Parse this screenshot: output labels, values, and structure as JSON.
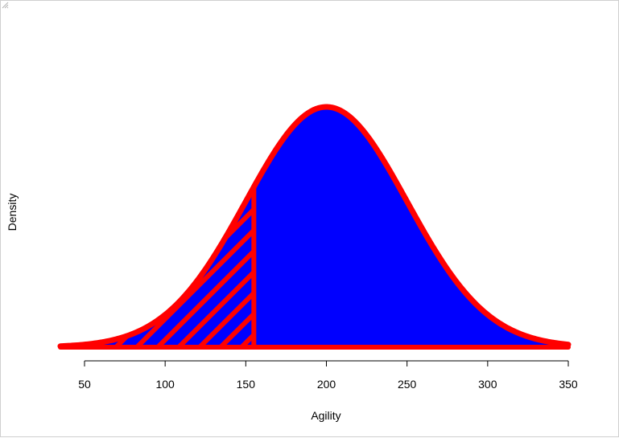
{
  "chart_data": {
    "type": "area",
    "title": "",
    "xlabel": "Agility",
    "ylabel": "Density",
    "distribution": {
      "name": "normal",
      "mean": 200,
      "sd": 50
    },
    "x_range": [
      35,
      350
    ],
    "xlim": [
      35,
      350
    ],
    "x_ticks": [
      50,
      100,
      150,
      200,
      250,
      300,
      350
    ],
    "x_tick_labels": [
      "50",
      "100",
      "150",
      "200",
      "250",
      "300",
      "350"
    ],
    "shaded_region": {
      "from": 35,
      "to": 155,
      "fill": "hatched"
    },
    "colors": {
      "fill": "#0000ff",
      "outline": "#ff0000",
      "hatch": "#ff0000"
    },
    "grid": false,
    "legend": "none",
    "y_axis_shown": false
  }
}
